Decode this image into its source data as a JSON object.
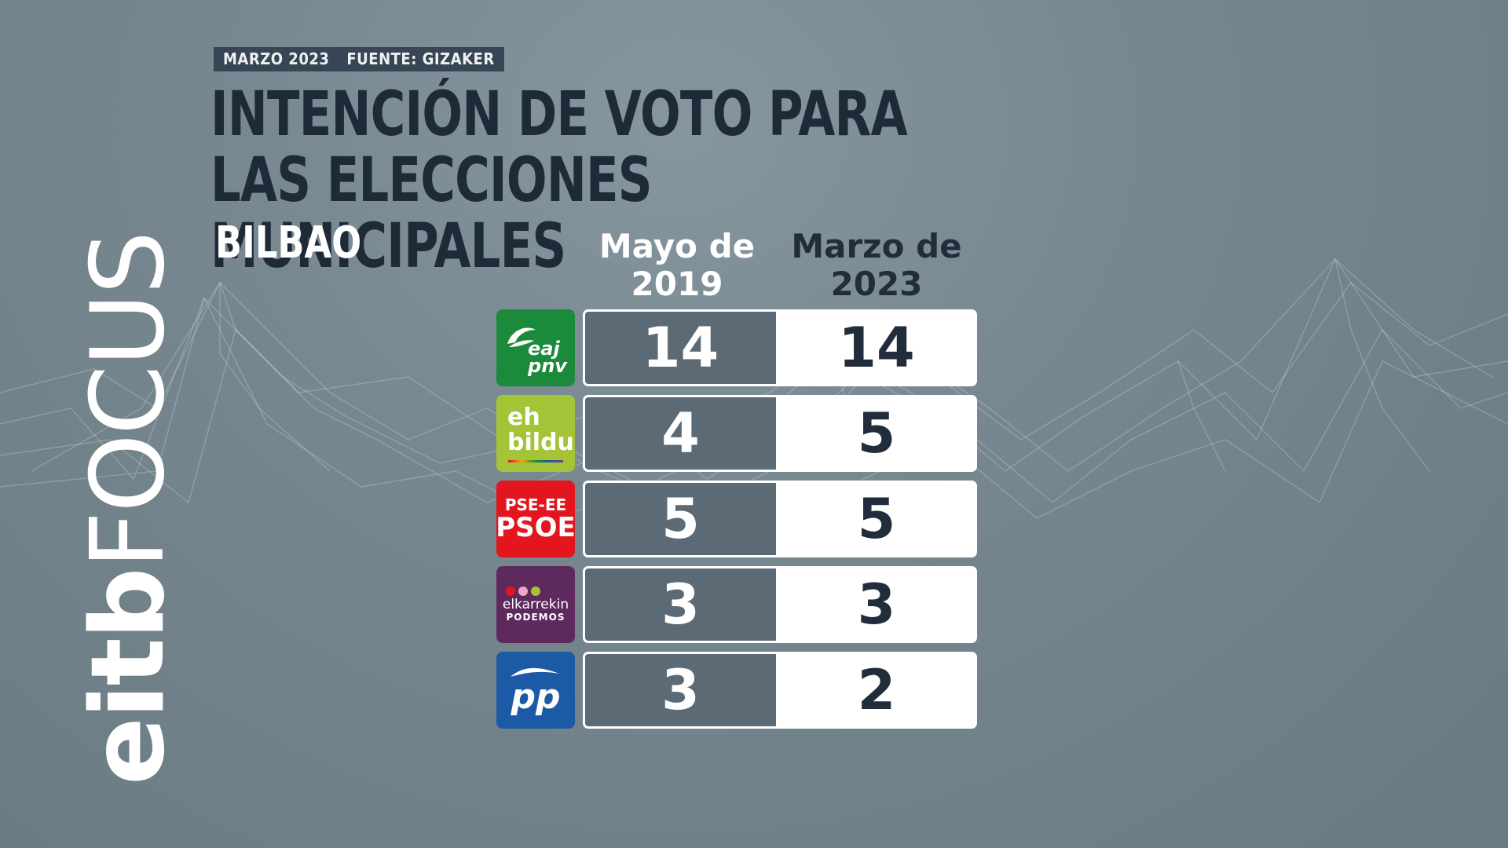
{
  "header": {
    "date_tag": "MARZO 2023",
    "source_tag": "FUENTE: GIZAKER",
    "title_line1": "INTENCIÓN DE VOTO PARA LAS ELECCIONES",
    "title_line2": "MUNICIPALES",
    "city": "BILBAO"
  },
  "brand": {
    "part1": "eitb",
    "part2": "FOCUS"
  },
  "chart_data": {
    "type": "table",
    "title": "INTENCIÓN DE VOTO PARA LAS ELECCIONES MUNICIPALES",
    "subtitle": "BILBAO",
    "columns": [
      {
        "line1": "Mayo de",
        "line2": "2019"
      },
      {
        "line1": "Marzo de",
        "line2": "2023"
      }
    ],
    "rows": [
      {
        "logo_text": [
          "eaj",
          "pnv"
        ],
        "values": [
          14,
          14
        ]
      },
      {
        "logo_text": [
          "eh",
          "bildu"
        ],
        "values": [
          4,
          5
        ]
      },
      {
        "logo_text": [
          "PSE-EE",
          "PSOE"
        ],
        "values": [
          5,
          5
        ]
      },
      {
        "logo_text": [
          "elkarrekin",
          "PODEMOS"
        ],
        "values": [
          3,
          3
        ]
      },
      {
        "logo_text": [
          "pp"
        ],
        "values": [
          3,
          2
        ]
      }
    ]
  },
  "colors": {
    "pnv": "#1b8a3a",
    "bildu": "#a4c437",
    "psoe": "#e3151e",
    "podemos": "#5e2a5e",
    "pp": "#1c5aa6",
    "title": "#1e2a38"
  },
  "icons": {
    "pnv": "pnv-party-logo-icon",
    "bildu": "bildu-party-logo-icon",
    "psoe": "psoe-party-logo-icon",
    "podemos": "podemos-party-logo-icon",
    "pp": "pp-party-logo-icon"
  }
}
